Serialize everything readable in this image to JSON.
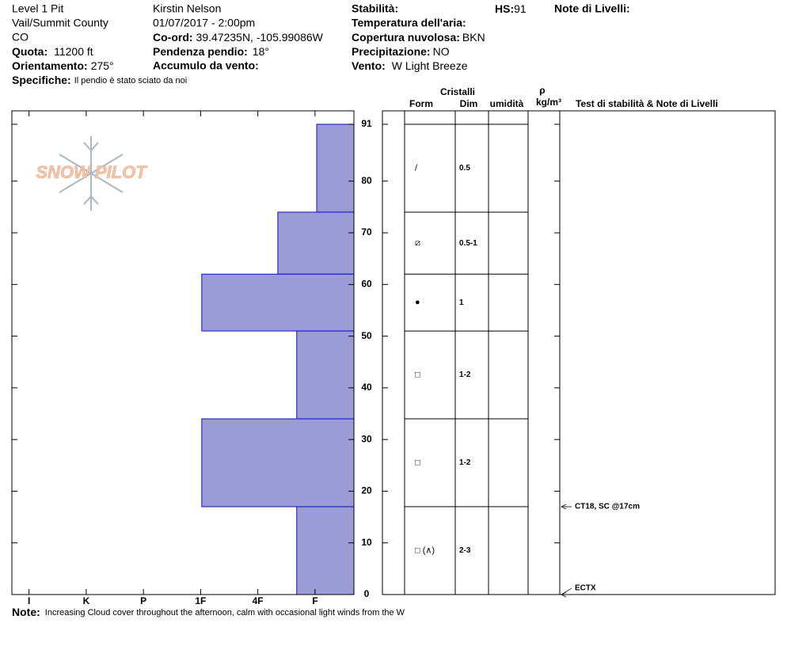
{
  "header": {
    "pit": "Level 1 Pit",
    "location": "Vail/Summit County",
    "state": "CO",
    "elevation": {
      "label": "Quota:",
      "value": "11200 ft"
    },
    "aspect": {
      "label": "Orientamento:",
      "value": "275°"
    },
    "notes": {
      "label": "Specifiche:",
      "value": "Il pendio è stato sciato da noi"
    },
    "observer": "Kirstin Nelson",
    "datetime": "01/07/2017 - 2:00pm",
    "coords": {
      "label": "Co-ord:",
      "value": "39.47235N, -105.99086W"
    },
    "slope": {
      "label": "Pendenza pendio:",
      "value": "18°"
    },
    "wind_loading": {
      "label": "Accumulo da vento:"
    },
    "stability": {
      "label": "Stabilità:"
    },
    "hs": {
      "label": "HS:",
      "value": "91"
    },
    "layer_notes": {
      "label": "Note di Livelli:"
    },
    "air_temp": {
      "label": "Temperatura dell'aria:"
    },
    "sky": {
      "label": "Copertura nuvolosa:",
      "value": "BKN"
    },
    "precip": {
      "label": "Precipitazione:",
      "value": "NO"
    },
    "wind": {
      "label": "Vento:",
      "value": "W Light Breeze"
    }
  },
  "logo": "SNOW PILOT",
  "chart_data": {
    "type": "hardness-profile",
    "color": "#9b9bd8",
    "edge_color": "#1010b0",
    "ylim": [
      0,
      93.6
    ],
    "yticks": [
      0,
      10,
      20,
      30,
      40,
      50,
      60,
      70,
      80,
      91
    ],
    "xlim": [
      6.3,
      0.32
    ],
    "xticks": [
      {
        "value": 6,
        "label": "I"
      },
      {
        "value": 5,
        "label": "K"
      },
      {
        "value": 4,
        "label": "P"
      },
      {
        "value": 3,
        "label": "1F"
      },
      {
        "value": 2,
        "label": "4F"
      },
      {
        "value": 1,
        "label": "F"
      }
    ],
    "layers": [
      {
        "top": 91,
        "bottom": 74,
        "hardness": 0.97,
        "form": "/",
        "size": "0.5"
      },
      {
        "top": 74,
        "bottom": 62,
        "hardness": 1.65,
        "form": "⧄",
        "size": "0.5-1"
      },
      {
        "top": 62,
        "bottom": 51,
        "hardness": 2.98,
        "form": "●",
        "size": "1"
      },
      {
        "top": 51,
        "bottom": 34,
        "hardness": 1.32,
        "form": "□",
        "size": "1-2"
      },
      {
        "top": 34,
        "bottom": 17,
        "hardness": 2.98,
        "form": "□",
        "size": "1-2"
      },
      {
        "top": 17,
        "bottom": 0,
        "hardness": 1.32,
        "form": "□ (∧)",
        "size": "2-3"
      }
    ],
    "tests": [
      {
        "depth": 17,
        "label": "CT18, SC @17cm"
      },
      {
        "depth": 0,
        "label": "ECTX"
      }
    ],
    "table_headers": {
      "crystals": "Cristalli",
      "form": "Form",
      "size": "Dim",
      "moisture": "umidità",
      "density_symbol": "ρ",
      "density_unit": "kg/m³",
      "tests": "Test di stabilità & Note di Livelli"
    }
  },
  "footer": {
    "label": "Note:",
    "value": "Increasing Cloud cover throughout the afternoon, calm with occasional light winds from the W"
  }
}
